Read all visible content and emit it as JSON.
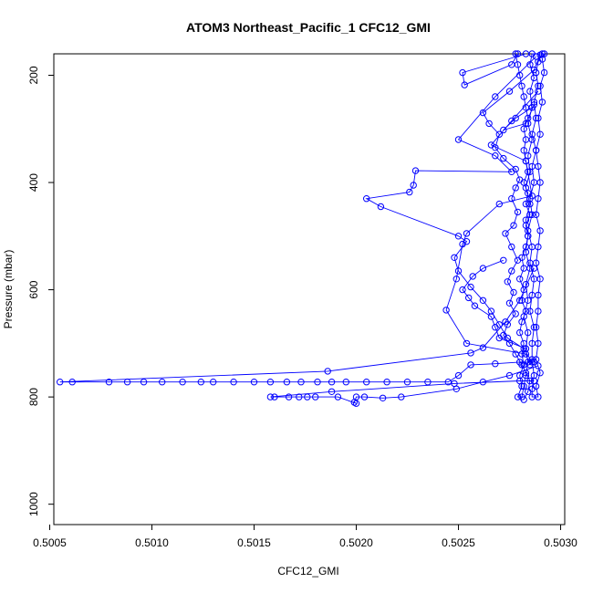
{
  "chart_data": {
    "type": "scatter",
    "title": "ATOM3 Northeast_Pacific_1 CFC12_GMI",
    "xlabel": "CFC12_GMI",
    "ylabel": "Pressure (mbar)",
    "xlim": [
      0.50052,
      0.50302
    ],
    "ylim": [
      1038,
      160
    ],
    "y_reversed": true,
    "xticks": [
      0.5005,
      0.501,
      0.5015,
      0.502,
      0.5025,
      0.503
    ],
    "xtick_labels": [
      "0.5005",
      "0.5010",
      "0.5015",
      "0.5020",
      "0.5025",
      "0.5030"
    ],
    "yticks": [
      200,
      400,
      600,
      800,
      1000
    ],
    "ytick_labels": [
      "200",
      "400",
      "600",
      "800",
      "1000"
    ],
    "grid": false,
    "legend": "none",
    "series": [
      {
        "color": "#0000ff",
        "marker": "open-circle",
        "connected": true,
        "points": [
          [
            0.50291,
            160
          ],
          [
            0.50289,
            175
          ],
          [
            0.50288,
            195
          ],
          [
            0.50289,
            220
          ],
          [
            0.50287,
            250
          ],
          [
            0.50288,
            280
          ],
          [
            0.50286,
            310
          ],
          [
            0.50288,
            340
          ],
          [
            0.50286,
            370
          ],
          [
            0.50287,
            400
          ],
          [
            0.50285,
            430
          ],
          [
            0.50286,
            460
          ],
          [
            0.50284,
            490
          ],
          [
            0.50286,
            520
          ],
          [
            0.50285,
            550
          ],
          [
            0.50287,
            580
          ],
          [
            0.50286,
            610
          ],
          [
            0.50285,
            640
          ],
          [
            0.50287,
            670
          ],
          [
            0.50286,
            700
          ],
          [
            0.50286,
            730
          ],
          [
            0.50287,
            760
          ],
          [
            0.50286,
            785
          ],
          [
            0.50286,
            800
          ],
          [
            0.50289,
            800
          ],
          [
            0.50288,
            780
          ],
          [
            0.5029,
            755
          ],
          [
            0.50288,
            730
          ],
          [
            0.50289,
            700
          ],
          [
            0.50288,
            670
          ],
          [
            0.50289,
            640
          ],
          [
            0.50289,
            610
          ],
          [
            0.5029,
            580
          ],
          [
            0.50288,
            550
          ],
          [
            0.50289,
            520
          ],
          [
            0.5029,
            490
          ],
          [
            0.50288,
            460
          ],
          [
            0.50289,
            430
          ],
          [
            0.5029,
            400
          ],
          [
            0.50289,
            370
          ],
          [
            0.50288,
            340
          ],
          [
            0.5029,
            310
          ],
          [
            0.50289,
            280
          ],
          [
            0.50291,
            250
          ],
          [
            0.5029,
            220
          ],
          [
            0.50292,
            195
          ],
          [
            0.50291,
            170
          ],
          [
            0.50292,
            160
          ],
          [
            0.50286,
            160
          ],
          [
            0.50285,
            180
          ],
          [
            0.50287,
            205
          ],
          [
            0.50285,
            230
          ],
          [
            0.50286,
            260
          ],
          [
            0.50284,
            290
          ],
          [
            0.50286,
            320
          ],
          [
            0.50284,
            350
          ],
          [
            0.50285,
            380
          ],
          [
            0.50283,
            410
          ],
          [
            0.50285,
            440
          ],
          [
            0.50283,
            470
          ],
          [
            0.50284,
            500
          ],
          [
            0.50283,
            530
          ],
          [
            0.50285,
            560
          ],
          [
            0.50283,
            590
          ],
          [
            0.50284,
            620
          ],
          [
            0.50282,
            650
          ],
          [
            0.50284,
            680
          ],
          [
            0.50283,
            710
          ],
          [
            0.50284,
            735
          ],
          [
            0.50283,
            760
          ],
          [
            0.50282,
            780
          ],
          [
            0.50281,
            800
          ],
          [
            0.50279,
            800
          ],
          [
            0.50281,
            780
          ],
          [
            0.5028,
            760
          ],
          [
            0.50282,
            740
          ],
          [
            0.50281,
            720
          ],
          [
            0.50282,
            700
          ],
          [
            0.5028,
            680
          ],
          [
            0.50281,
            660
          ],
          [
            0.50283,
            640
          ],
          [
            0.50281,
            620
          ],
          [
            0.50282,
            600
          ],
          [
            0.5028,
            580
          ],
          [
            0.50282,
            560
          ],
          [
            0.50281,
            540
          ],
          [
            0.50283,
            520
          ],
          [
            0.50284,
            500
          ],
          [
            0.50283,
            480
          ],
          [
            0.50285,
            460
          ],
          [
            0.50283,
            440
          ],
          [
            0.50284,
            420
          ],
          [
            0.50282,
            400
          ],
          [
            0.50284,
            380
          ],
          [
            0.50283,
            360
          ],
          [
            0.50282,
            340
          ],
          [
            0.50283,
            320
          ],
          [
            0.50282,
            300
          ],
          [
            0.50284,
            280
          ],
          [
            0.50283,
            260
          ],
          [
            0.50282,
            240
          ],
          [
            0.50281,
            220
          ],
          [
            0.5028,
            200
          ],
          [
            0.50279,
            180
          ],
          [
            0.50278,
            160
          ]
        ]
      },
      {
        "color": "#0000ff",
        "marker": "open-circle",
        "connected": true,
        "points": [
          [
            0.5029,
            162
          ],
          [
            0.50287,
            190
          ],
          [
            0.50275,
            230
          ],
          [
            0.50262,
            270
          ],
          [
            0.50265,
            290
          ],
          [
            0.5027,
            310
          ],
          [
            0.50268,
            335
          ],
          [
            0.50272,
            355
          ],
          [
            0.50278,
            375
          ],
          [
            0.5028,
            395
          ],
          [
            0.50278,
            410
          ],
          [
            0.50276,
            430
          ],
          [
            0.50279,
            455
          ],
          [
            0.50277,
            480
          ],
          [
            0.50273,
            495
          ],
          [
            0.50276,
            520
          ],
          [
            0.50279,
            545
          ],
          [
            0.50276,
            565
          ],
          [
            0.50274,
            585
          ],
          [
            0.50277,
            605
          ],
          [
            0.50275,
            625
          ],
          [
            0.50278,
            645
          ],
          [
            0.50274,
            665
          ],
          [
            0.50272,
            685
          ],
          [
            0.50275,
            700
          ],
          [
            0.50278,
            720
          ],
          [
            0.50281,
            740
          ],
          [
            0.50283,
            755
          ],
          [
            0.50285,
            770
          ],
          [
            0.50284,
            790
          ],
          [
            0.50282,
            805
          ]
        ]
      },
      {
        "color": "#0000ff",
        "marker": "open-circle",
        "connected": true,
        "points": [
          [
            0.50283,
            160
          ],
          [
            0.50252,
            195
          ],
          [
            0.50253,
            218
          ],
          [
            0.50276,
            180
          ],
          [
            0.50279,
            160
          ]
        ]
      },
      {
        "color": "#0000ff",
        "marker": "open-circle",
        "connected": true,
        "points": [
          [
            0.50288,
            165
          ],
          [
            0.50268,
            240
          ],
          [
            0.5025,
            320
          ],
          [
            0.50268,
            350
          ],
          [
            0.50276,
            380
          ],
          [
            0.50229,
            378
          ],
          [
            0.50228,
            405
          ],
          [
            0.50226,
            418
          ],
          [
            0.50205,
            430
          ],
          [
            0.50212,
            445
          ],
          [
            0.5025,
            500
          ],
          [
            0.50254,
            510
          ],
          [
            0.50248,
            540
          ],
          [
            0.5025,
            565
          ],
          [
            0.50256,
            595
          ],
          [
            0.50262,
            620
          ],
          [
            0.50266,
            640
          ],
          [
            0.5027,
            665
          ],
          [
            0.50274,
            690
          ],
          [
            0.50282,
            710
          ],
          [
            0.50286,
            735
          ]
        ]
      },
      {
        "color": "#0000ff",
        "marker": "open-circle",
        "connected": true,
        "points": [
          [
            0.50289,
            230
          ],
          [
            0.50276,
            285
          ],
          [
            0.50266,
            330
          ],
          [
            0.50283,
            360
          ],
          [
            0.50286,
            425
          ],
          [
            0.5027,
            440
          ],
          [
            0.50254,
            495
          ],
          [
            0.50252,
            515
          ],
          [
            0.50249,
            580
          ],
          [
            0.50244,
            638
          ],
          [
            0.50254,
            700
          ],
          [
            0.50283,
            720
          ],
          [
            0.50285,
            740
          ]
        ]
      },
      {
        "color": "#0000ff",
        "marker": "open-circle",
        "connected": true,
        "points": [
          [
            0.50286,
            260
          ],
          [
            0.50278,
            280
          ],
          [
            0.50272,
            302
          ],
          [
            0.50283,
            290
          ],
          [
            0.50287,
            255
          ]
        ]
      },
      {
        "color": "#0000ff",
        "marker": "open-circle",
        "connected": true,
        "points": [
          [
            0.50287,
            560
          ],
          [
            0.5028,
            620
          ],
          [
            0.50273,
            660
          ],
          [
            0.50262,
            708
          ],
          [
            0.50256,
            718
          ],
          [
            0.50186,
            752
          ],
          [
            0.50055,
            772
          ],
          [
            0.50061,
            772
          ],
          [
            0.50079,
            772
          ],
          [
            0.50088,
            772
          ],
          [
            0.50096,
            772
          ],
          [
            0.50105,
            772
          ],
          [
            0.50115,
            772
          ],
          [
            0.50124,
            772
          ],
          [
            0.5013,
            772
          ],
          [
            0.5014,
            772
          ],
          [
            0.5015,
            772
          ],
          [
            0.50158,
            772
          ],
          [
            0.50166,
            772
          ],
          [
            0.50173,
            772
          ],
          [
            0.50181,
            772
          ],
          [
            0.50188,
            772
          ],
          [
            0.50195,
            772
          ],
          [
            0.50205,
            772
          ],
          [
            0.50215,
            772
          ],
          [
            0.50225,
            772
          ],
          [
            0.50235,
            772
          ],
          [
            0.50245,
            772
          ],
          [
            0.5025,
            760
          ],
          [
            0.50256,
            740
          ],
          [
            0.50268,
            738
          ],
          [
            0.5028,
            735
          ],
          [
            0.50287,
            735
          ]
        ]
      },
      {
        "color": "#0000ff",
        "marker": "open-circle",
        "connected": true,
        "points": [
          [
            0.50289,
            742
          ],
          [
            0.50275,
            760
          ],
          [
            0.50262,
            772
          ],
          [
            0.50249,
            785
          ],
          [
            0.50222,
            800
          ],
          [
            0.50213,
            802
          ],
          [
            0.50204,
            800
          ],
          [
            0.502,
            800
          ],
          [
            0.50199,
            810
          ],
          [
            0.502,
            812
          ],
          [
            0.50191,
            800
          ],
          [
            0.5018,
            800
          ],
          [
            0.50176,
            800
          ],
          [
            0.50172,
            800
          ],
          [
            0.50167,
            800
          ],
          [
            0.5016,
            800
          ],
          [
            0.50158,
            800
          ],
          [
            0.50188,
            790
          ],
          [
            0.50248,
            775
          ],
          [
            0.5028,
            770
          ],
          [
            0.50287,
            770
          ]
        ]
      },
      {
        "color": "#0000ff",
        "marker": "open-circle",
        "connected": true,
        "points": [
          [
            0.50272,
            545
          ],
          [
            0.50262,
            560
          ],
          [
            0.50257,
            575
          ],
          [
            0.50252,
            600
          ],
          [
            0.50255,
            615
          ],
          [
            0.50258,
            630
          ],
          [
            0.50266,
            650
          ],
          [
            0.50268,
            670
          ],
          [
            0.5027,
            690
          ],
          [
            0.50283,
            710
          ]
        ]
      }
    ]
  }
}
